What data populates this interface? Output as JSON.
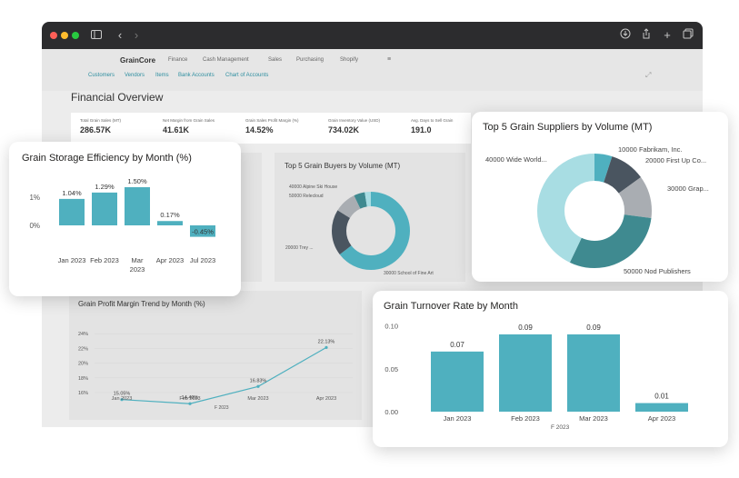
{
  "colors": {
    "teal": "#4fb0bf",
    "teal_dark": "#3f8a90",
    "slate": "#4a5560",
    "gray": "#a9adb2",
    "pale": "#a8dde3"
  },
  "app": {
    "brand": "GrainCore",
    "nav": [
      "Finance",
      "Cash Management",
      "Sales",
      "Purchasing",
      "Shopify"
    ],
    "subnav": [
      "Customers",
      "Vendors",
      "Items",
      "Bank Accounts",
      "Chart of Accounts"
    ],
    "page_title": "Financial Overview"
  },
  "kpis": [
    {
      "label": "Total Grain Sales (MT)",
      "value": "286.57K"
    },
    {
      "label": "Net Margin from Grain Sales",
      "value": "41.61K"
    },
    {
      "label": "Grain Sales Profit Margin (%)",
      "value": "14.52%"
    },
    {
      "label": "Grain Inventory Value (USD)",
      "value": "734.02K"
    },
    {
      "label": "Avg. Days to Sell Grain",
      "value": "191.0"
    }
  ],
  "buyers": {
    "title": "Top 5 Grain Buyers by Volume (MT)",
    "labels": [
      "40000 Alpine Ski House",
      "50000 Relecloud",
      "20000 Trey ...",
      "30000 School of Fine Art"
    ]
  },
  "profit_trend": {
    "title": "Grain Profit Margin Trend by Month (%)",
    "xaxis_title": "F 2023",
    "chart_data": {
      "type": "line",
      "categories": [
        "Jan 2023",
        "Feb 2023",
        "Mar 2023",
        "Apr 2023"
      ],
      "values": [
        15.05,
        14.49,
        16.83,
        22.13
      ],
      "labels": [
        "15.05%",
        "14.49%",
        "16.83%",
        "22.13%"
      ],
      "yticks": [
        "24%",
        "22%",
        "20%",
        "18%",
        "16%"
      ],
      "ylim": [
        15,
        24
      ]
    }
  },
  "storage": {
    "title": "Grain Storage Efficiency by Month (%)",
    "chart_data": {
      "type": "bar",
      "categories": [
        "Jan 2023",
        "Feb 2023",
        "Mar 2023",
        "Apr 2023",
        "Jul 2023"
      ],
      "values": [
        1.04,
        1.29,
        1.5,
        0.17,
        -0.45
      ],
      "labels": [
        "1.04%",
        "1.29%",
        "1.50%",
        "0.17%",
        "-0.45%"
      ],
      "yticks": [
        "1%",
        "0%"
      ],
      "ylim": [
        -0.6,
        1.6
      ]
    }
  },
  "suppliers": {
    "title": "Top 5 Grain Suppliers by Volume (MT)",
    "chart_data": {
      "type": "pie",
      "labels": [
        "10000 Fabrikam, Inc.",
        "20000 First Up Co...",
        "30000 Grap...",
        "50000 Nod Publishers",
        "40000 Wide World..."
      ],
      "values": [
        5,
        10,
        12,
        30,
        43
      ]
    }
  },
  "turnover": {
    "title": "Grain Turnover Rate by Month",
    "xaxis_title": "F 2023",
    "chart_data": {
      "type": "bar",
      "categories": [
        "Jan 2023",
        "Feb 2023",
        "Mar 2023",
        "Apr 2023"
      ],
      "values": [
        0.07,
        0.09,
        0.09,
        0.01
      ],
      "labels": [
        "0.07",
        "0.09",
        "0.09",
        "0.01"
      ],
      "yticks": [
        "0.10",
        "0.05",
        "0.00"
      ],
      "ylim": [
        0,
        0.1
      ]
    }
  }
}
